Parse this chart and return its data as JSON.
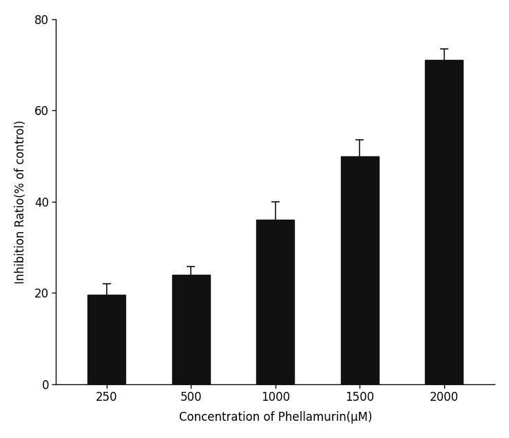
{
  "categories": [
    "250",
    "500",
    "1000",
    "1500",
    "2000"
  ],
  "values": [
    19.5,
    24.0,
    36.0,
    50.0,
    71.0
  ],
  "errors": [
    2.5,
    1.8,
    4.0,
    3.5,
    2.5
  ],
  "bar_color": "#111111",
  "bar_width": 0.45,
  "xlabel": "Concentration of Phellamurin(μM)",
  "ylabel": "Inhibition Ratio(% of control)",
  "ylim": [
    0,
    80
  ],
  "yticks": [
    0,
    20,
    40,
    60,
    80
  ],
  "xlabel_fontsize": 12,
  "ylabel_fontsize": 12,
  "tick_fontsize": 12,
  "background_color": "#ffffff",
  "error_color": "#111111",
  "error_capsize": 4,
  "error_linewidth": 1.2
}
